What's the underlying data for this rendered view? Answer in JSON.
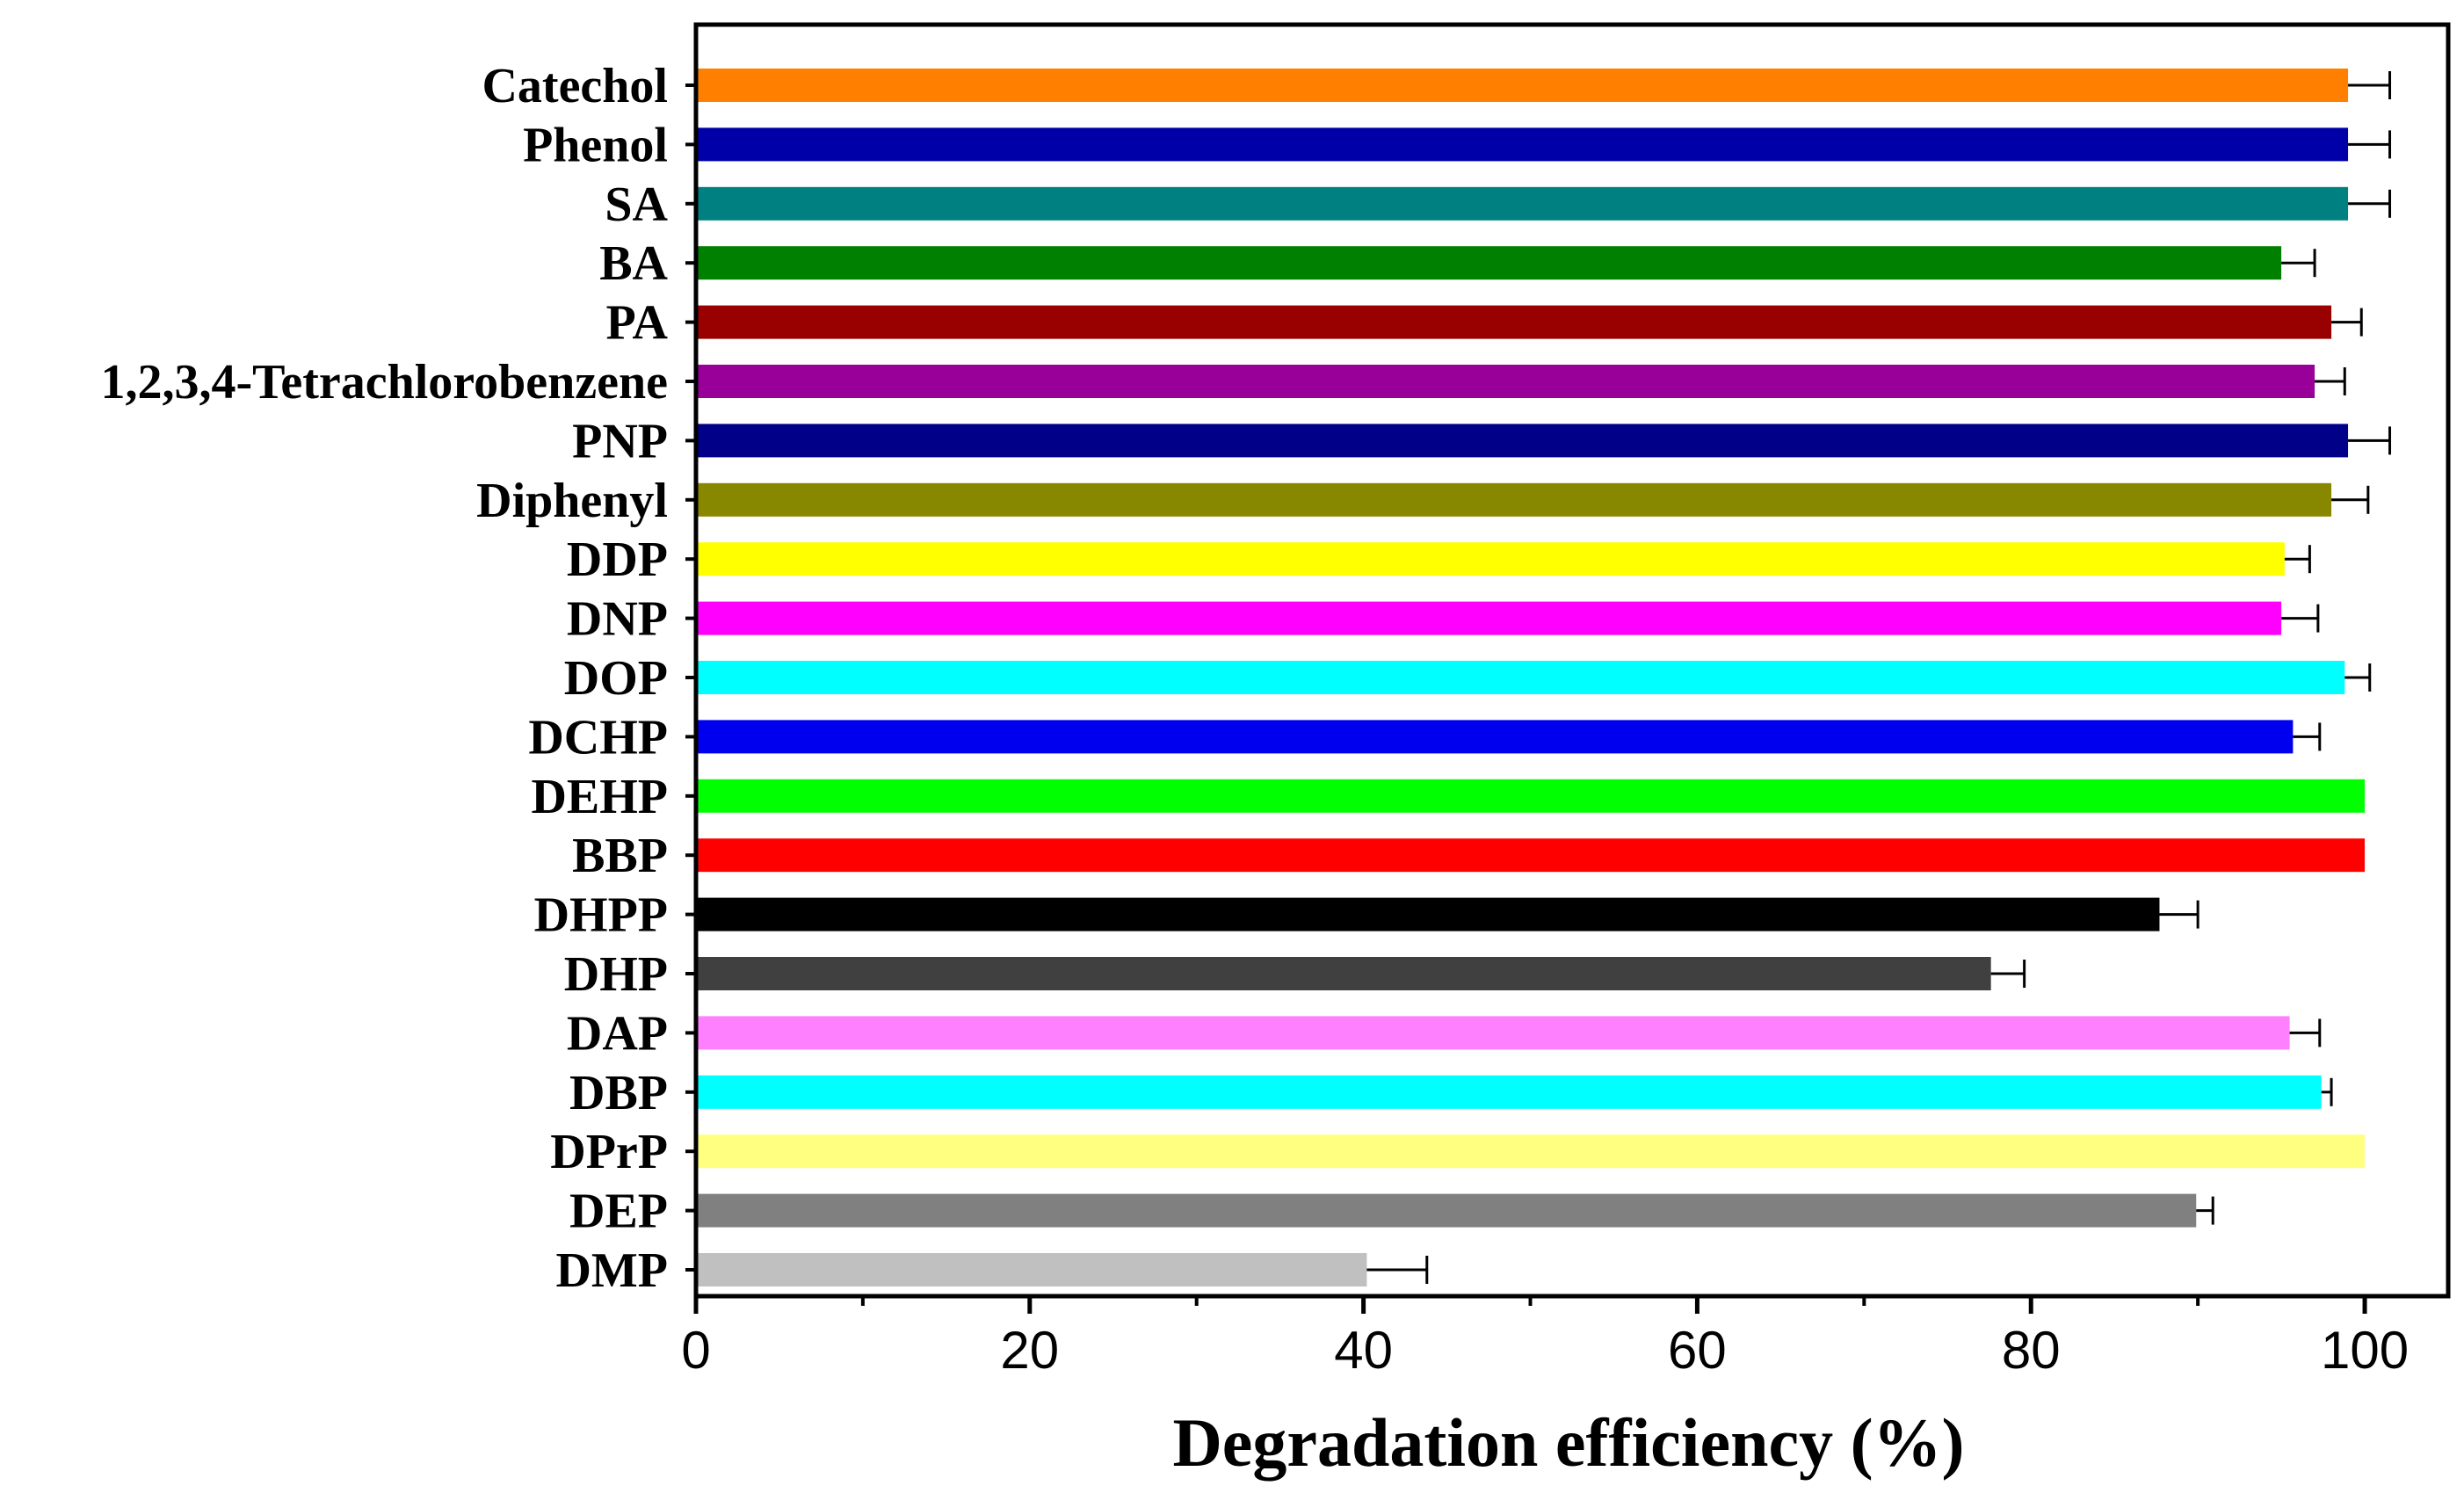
{
  "chart_data": {
    "type": "bar",
    "orientation": "horizontal",
    "title": "",
    "xlabel": "Degradation efficiency  (%)",
    "ylabel": "",
    "xlim": [
      0,
      105
    ],
    "xticks": [
      0,
      20,
      40,
      60,
      80,
      100
    ],
    "grid": false,
    "legend": "none",
    "categories": [
      "Catechol",
      "Phenol",
      "SA",
      "BA",
      "PA",
      "1,2,3,4-Tetrachlorobenzene",
      "PNP",
      "Diphenyl",
      "DDP",
      "DNP",
      "DOP",
      "DCHP",
      "DEHP",
      "BBP",
      "DHPP",
      "DHP",
      "DAP",
      "DBP",
      "DPrP",
      "DEP",
      "DMP"
    ],
    "values": [
      99.0,
      99.0,
      99.0,
      95.0,
      98.0,
      97.0,
      99.0,
      98.0,
      95.2,
      95.0,
      98.8,
      95.7,
      100.0,
      100.0,
      87.7,
      77.6,
      95.5,
      97.4,
      100.0,
      89.9,
      40.2
    ],
    "errors": [
      2.5,
      2.5,
      2.5,
      2.0,
      1.8,
      1.8,
      2.5,
      2.2,
      1.5,
      2.2,
      1.5,
      1.6,
      0,
      0,
      2.3,
      2.0,
      1.8,
      0.6,
      0,
      1.0,
      3.6
    ],
    "colors": [
      "#FF8000",
      "#0000A8",
      "#008080",
      "#008000",
      "#990000",
      "#990099",
      "#000088",
      "#888800",
      "#FFFF00",
      "#FF00FF",
      "#00FFFF",
      "#0000EE",
      "#00FF00",
      "#FF0000",
      "#000000",
      "#404040",
      "#FF80FF",
      "#00FFFF",
      "#FFFF80",
      "#808080",
      "#C0C0C0"
    ]
  }
}
